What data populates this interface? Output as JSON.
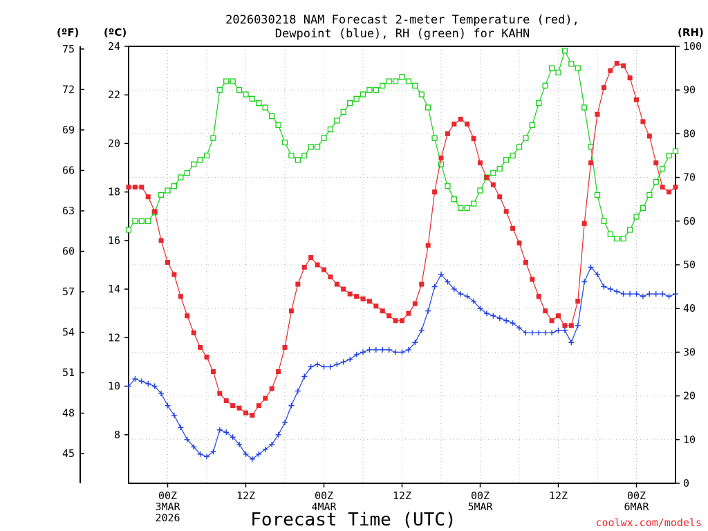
{
  "chart_data": {
    "type": "line",
    "title_line1": "2026030218 NAM Forecast 2-meter Temperature (red),",
    "title_line2": "Dewpoint (blue), RH (green) for KAHN",
    "xlabel": "Forecast Time (UTC)",
    "credit": "coolwx.com/models",
    "units": {
      "f": "(ºF)",
      "c": "(ºC)",
      "rh": "(RH)"
    },
    "x_range_hours": [
      0,
      84
    ],
    "y_celsius_range": [
      6,
      24
    ],
    "y_rh_range": [
      0,
      100
    ],
    "celsius_ticks": [
      "8",
      "10",
      "12",
      "14",
      "16",
      "18",
      "20",
      "22",
      "24"
    ],
    "fahrenheit_ticks": [
      "45",
      "48",
      "51",
      "54",
      "57",
      "60",
      "63",
      "66",
      "69",
      "72",
      "75"
    ],
    "rh_ticks": [
      "0",
      "10",
      "20",
      "30",
      "40",
      "50",
      "60",
      "70",
      "80",
      "90",
      "100"
    ],
    "x_ticks": [
      {
        "hour": 6,
        "lines": [
          "00Z",
          "3MAR",
          "2026"
        ]
      },
      {
        "hour": 18,
        "lines": [
          "12Z"
        ]
      },
      {
        "hour": 30,
        "lines": [
          "00Z",
          "4MAR"
        ]
      },
      {
        "hour": 42,
        "lines": [
          "12Z"
        ]
      },
      {
        "hour": 54,
        "lines": [
          "00Z",
          "5MAR"
        ]
      },
      {
        "hour": 66,
        "lines": [
          "12Z"
        ]
      },
      {
        "hour": 78,
        "lines": [
          "00Z",
          "6MAR"
        ]
      }
    ],
    "colors": {
      "temperature": "#e8282d",
      "dewpoint": "#2040e0",
      "rh": "#18d018",
      "grid": "#b0b0b0",
      "credit": "#e8282d"
    },
    "series": [
      {
        "name": "Temperature",
        "unit": "C",
        "marker": "filled-square",
        "values": [
          [
            0,
            18.2
          ],
          [
            1,
            18.2
          ],
          [
            2,
            18.2
          ],
          [
            3,
            17.8
          ],
          [
            4,
            17.2
          ],
          [
            5,
            16.0
          ],
          [
            6,
            15.1
          ],
          [
            7,
            14.6
          ],
          [
            8,
            13.7
          ],
          [
            9,
            12.9
          ],
          [
            10,
            12.2
          ],
          [
            11,
            11.6
          ],
          [
            12,
            11.2
          ],
          [
            13,
            10.6
          ],
          [
            14,
            9.7
          ],
          [
            15,
            9.4
          ],
          [
            16,
            9.2
          ],
          [
            17,
            9.1
          ],
          [
            18,
            8.9
          ],
          [
            19,
            8.8
          ],
          [
            20,
            9.2
          ],
          [
            21,
            9.5
          ],
          [
            22,
            9.9
          ],
          [
            23,
            10.6
          ],
          [
            24,
            11.6
          ],
          [
            25,
            13.1
          ],
          [
            26,
            14.2
          ],
          [
            27,
            14.9
          ],
          [
            28,
            15.3
          ],
          [
            29,
            15.0
          ],
          [
            30,
            14.8
          ],
          [
            31,
            14.5
          ],
          [
            32,
            14.2
          ],
          [
            33,
            14.0
          ],
          [
            34,
            13.8
          ],
          [
            35,
            13.7
          ],
          [
            36,
            13.6
          ],
          [
            37,
            13.5
          ],
          [
            38,
            13.3
          ],
          [
            39,
            13.1
          ],
          [
            40,
            12.9
          ],
          [
            41,
            12.7
          ],
          [
            42,
            12.7
          ],
          [
            43,
            13.0
          ],
          [
            44,
            13.4
          ],
          [
            45,
            14.2
          ],
          [
            46,
            15.8
          ],
          [
            47,
            18.0
          ],
          [
            48,
            19.4
          ],
          [
            49,
            20.4
          ],
          [
            50,
            20.8
          ],
          [
            51,
            21.0
          ],
          [
            52,
            20.8
          ],
          [
            53,
            20.2
          ],
          [
            54,
            19.2
          ],
          [
            55,
            18.6
          ],
          [
            56,
            18.3
          ],
          [
            57,
            17.8
          ],
          [
            58,
            17.2
          ],
          [
            59,
            16.5
          ],
          [
            60,
            15.9
          ],
          [
            61,
            15.1
          ],
          [
            62,
            14.4
          ],
          [
            63,
            13.7
          ],
          [
            64,
            13.1
          ],
          [
            65,
            12.7
          ],
          [
            66,
            12.9
          ],
          [
            67,
            12.5
          ],
          [
            68,
            12.5
          ],
          [
            69,
            13.5
          ],
          [
            70,
            16.7
          ],
          [
            71,
            19.2
          ],
          [
            72,
            21.2
          ],
          [
            73,
            22.3
          ],
          [
            74,
            23.0
          ],
          [
            75,
            23.3
          ],
          [
            76,
            23.2
          ],
          [
            77,
            22.7
          ],
          [
            78,
            21.8
          ],
          [
            79,
            20.9
          ],
          [
            80,
            20.3
          ],
          [
            81,
            19.2
          ],
          [
            82,
            18.2
          ],
          [
            83,
            18.0
          ],
          [
            84,
            18.2
          ]
        ]
      },
      {
        "name": "Dewpoint",
        "unit": "C",
        "marker": "plus",
        "values": [
          [
            0,
            10.0
          ],
          [
            1,
            10.3
          ],
          [
            2,
            10.2
          ],
          [
            3,
            10.1
          ],
          [
            4,
            10.0
          ],
          [
            5,
            9.7
          ],
          [
            6,
            9.2
          ],
          [
            7,
            8.8
          ],
          [
            8,
            8.3
          ],
          [
            9,
            7.8
          ],
          [
            10,
            7.5
          ],
          [
            11,
            7.2
          ],
          [
            12,
            7.1
          ],
          [
            13,
            7.3
          ],
          [
            14,
            8.2
          ],
          [
            15,
            8.1
          ],
          [
            16,
            7.9
          ],
          [
            17,
            7.6
          ],
          [
            18,
            7.2
          ],
          [
            19,
            7.0
          ],
          [
            20,
            7.2
          ],
          [
            21,
            7.4
          ],
          [
            22,
            7.6
          ],
          [
            23,
            8.0
          ],
          [
            24,
            8.5
          ],
          [
            25,
            9.2
          ],
          [
            26,
            9.8
          ],
          [
            27,
            10.4
          ],
          [
            28,
            10.8
          ],
          [
            29,
            10.9
          ],
          [
            30,
            10.8
          ],
          [
            31,
            10.8
          ],
          [
            32,
            10.9
          ],
          [
            33,
            11.0
          ],
          [
            34,
            11.1
          ],
          [
            35,
            11.3
          ],
          [
            36,
            11.4
          ],
          [
            37,
            11.5
          ],
          [
            38,
            11.5
          ],
          [
            39,
            11.5
          ],
          [
            40,
            11.5
          ],
          [
            41,
            11.4
          ],
          [
            42,
            11.4
          ],
          [
            43,
            11.5
          ],
          [
            44,
            11.8
          ],
          [
            45,
            12.3
          ],
          [
            46,
            13.1
          ],
          [
            47,
            14.1
          ],
          [
            48,
            14.6
          ],
          [
            49,
            14.3
          ],
          [
            50,
            14.0
          ],
          [
            51,
            13.8
          ],
          [
            52,
            13.7
          ],
          [
            53,
            13.5
          ],
          [
            54,
            13.2
          ],
          [
            55,
            13.0
          ],
          [
            56,
            12.9
          ],
          [
            57,
            12.8
          ],
          [
            58,
            12.7
          ],
          [
            59,
            12.6
          ],
          [
            60,
            12.4
          ],
          [
            61,
            12.2
          ],
          [
            62,
            12.2
          ],
          [
            63,
            12.2
          ],
          [
            64,
            12.2
          ],
          [
            65,
            12.2
          ],
          [
            66,
            12.3
          ],
          [
            67,
            12.3
          ],
          [
            68,
            11.8
          ],
          [
            69,
            12.5
          ],
          [
            70,
            14.3
          ],
          [
            71,
            14.9
          ],
          [
            72,
            14.6
          ],
          [
            73,
            14.1
          ],
          [
            74,
            14.0
          ],
          [
            75,
            13.9
          ],
          [
            76,
            13.8
          ],
          [
            77,
            13.8
          ],
          [
            78,
            13.8
          ],
          [
            79,
            13.7
          ],
          [
            80,
            13.8
          ],
          [
            81,
            13.8
          ],
          [
            82,
            13.8
          ],
          [
            83,
            13.7
          ],
          [
            84,
            13.8
          ]
        ]
      },
      {
        "name": "RH",
        "unit": "%",
        "marker": "open-square",
        "values": [
          [
            0,
            58
          ],
          [
            1,
            60
          ],
          [
            2,
            60
          ],
          [
            3,
            60
          ],
          [
            4,
            62
          ],
          [
            5,
            66
          ],
          [
            6,
            67
          ],
          [
            7,
            68
          ],
          [
            8,
            70
          ],
          [
            9,
            71
          ],
          [
            10,
            73
          ],
          [
            11,
            74
          ],
          [
            12,
            75
          ],
          [
            13,
            79
          ],
          [
            14,
            90
          ],
          [
            15,
            92
          ],
          [
            16,
            92
          ],
          [
            17,
            90
          ],
          [
            18,
            89
          ],
          [
            19,
            88
          ],
          [
            20,
            87
          ],
          [
            21,
            86
          ],
          [
            22,
            84
          ],
          [
            23,
            82
          ],
          [
            24,
            78
          ],
          [
            25,
            75
          ],
          [
            26,
            74
          ],
          [
            27,
            75
          ],
          [
            28,
            77
          ],
          [
            29,
            77
          ],
          [
            30,
            79
          ],
          [
            31,
            81
          ],
          [
            32,
            83
          ],
          [
            33,
            85
          ],
          [
            34,
            87
          ],
          [
            35,
            88
          ],
          [
            36,
            89
          ],
          [
            37,
            90
          ],
          [
            38,
            90
          ],
          [
            39,
            91
          ],
          [
            40,
            92
          ],
          [
            41,
            92
          ],
          [
            42,
            93
          ],
          [
            43,
            92
          ],
          [
            44,
            91
          ],
          [
            45,
            89
          ],
          [
            46,
            86
          ],
          [
            47,
            79
          ],
          [
            48,
            73
          ],
          [
            49,
            68
          ],
          [
            50,
            65
          ],
          [
            51,
            63
          ],
          [
            52,
            63
          ],
          [
            53,
            64
          ],
          [
            54,
            67
          ],
          [
            55,
            70
          ],
          [
            56,
            71
          ],
          [
            57,
            72
          ],
          [
            58,
            74
          ],
          [
            59,
            75
          ],
          [
            60,
            77
          ],
          [
            61,
            79
          ],
          [
            62,
            82
          ],
          [
            63,
            87
          ],
          [
            64,
            91
          ],
          [
            65,
            95
          ],
          [
            66,
            94
          ],
          [
            67,
            99
          ],
          [
            68,
            96
          ],
          [
            69,
            95
          ],
          [
            70,
            86
          ],
          [
            71,
            77
          ],
          [
            72,
            66
          ],
          [
            73,
            60
          ],
          [
            74,
            57
          ],
          [
            75,
            56
          ],
          [
            76,
            56
          ],
          [
            77,
            58
          ],
          [
            78,
            61
          ],
          [
            79,
            63
          ],
          [
            80,
            66
          ],
          [
            81,
            69
          ],
          [
            82,
            72
          ],
          [
            83,
            75
          ],
          [
            84,
            76
          ]
        ]
      }
    ]
  }
}
